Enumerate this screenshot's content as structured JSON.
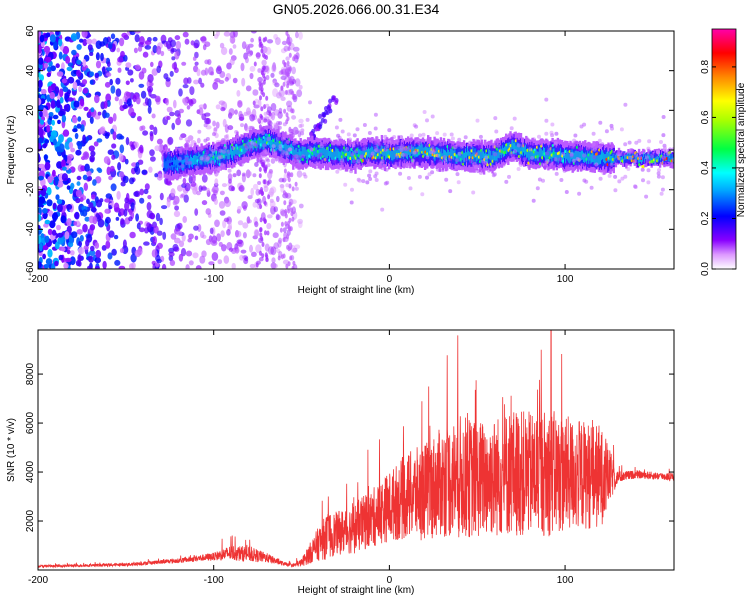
{
  "figure_title": "GN05.2026.066.00.31.E34",
  "chart_data": [
    {
      "type": "heatmap",
      "xlabel": "Height of straight line (km)",
      "ylabel": "Frequency (Hz)",
      "xlim": [
        -200,
        162
      ],
      "ylim": [
        -60,
        60
      ],
      "xticks": [
        -200,
        -100,
        0,
        100
      ],
      "yticks": [
        -60,
        -40,
        -20,
        0,
        20,
        40,
        60
      ],
      "colorbar": {
        "label": "Normalized spectral amplitude",
        "range": [
          0.0,
          0.95
        ],
        "ticks": [
          0.0,
          0.2,
          0.4,
          0.6,
          0.8
        ],
        "colormap": [
          "#ffffff",
          "#8800ff",
          "#0000ff",
          "#00ffff",
          "#00ff00",
          "#ffff00",
          "#ff8800",
          "#ff0000",
          "#ff00aa"
        ]
      },
      "ridge": {
        "x": [
          -125,
          -110,
          -95,
          -80,
          -70,
          -60,
          -50,
          -40,
          -30,
          -20,
          -10,
          0,
          20,
          40,
          60,
          70,
          80,
          90,
          100,
          110,
          120,
          130,
          162
        ],
        "y": [
          -7,
          -5,
          -3,
          2,
          5,
          1,
          -2,
          -1,
          -2,
          -3,
          -1,
          -2,
          -1,
          -3,
          -3,
          2,
          -2,
          -2,
          -3,
          -3,
          -4,
          -4,
          -4
        ],
        "peak_amplitude": [
          0.3,
          0.4,
          0.5,
          0.55,
          0.55,
          0.5,
          0.55,
          0.6,
          0.7,
          0.75,
          0.8,
          0.8,
          0.8,
          0.75,
          0.75,
          0.7,
          0.7,
          0.7,
          0.65,
          0.7,
          0.8,
          0.9,
          0.9
        ]
      },
      "noise_region": {
        "x": [
          -200,
          -60
        ],
        "amplitude": [
          0.05,
          0.35
        ]
      },
      "grid": false
    },
    {
      "type": "line",
      "xlabel": "Height of straight line (km)",
      "ylabel": "SNR (10 * v/v)",
      "xlim": [
        -200,
        162
      ],
      "ylim": [
        0,
        9800
      ],
      "xticks": [
        -200,
        -100,
        0,
        100
      ],
      "yticks": [
        2000,
        4000,
        6000,
        8000
      ],
      "color": "#ee3333",
      "series": [
        {
          "x": [
            -200,
            -150,
            -120,
            -100,
            -90,
            -80,
            -70,
            -60,
            -55,
            -50,
            -40,
            -35,
            -30,
            -20,
            -10,
            0,
            10,
            20,
            30,
            40,
            50,
            60,
            70,
            80,
            90,
            100,
            110,
            120,
            130,
            140,
            150,
            162
          ],
          "mean": [
            150,
            220,
            380,
            550,
            700,
            650,
            500,
            250,
            180,
            300,
            1100,
            1400,
            1500,
            1700,
            2100,
            2600,
            3000,
            3200,
            3600,
            3800,
            3700,
            3800,
            4000,
            3900,
            4000,
            3900,
            3900,
            3800,
            3800,
            3900,
            3850,
            3800
          ],
          "amp": [
            60,
            80,
            120,
            200,
            400,
            400,
            250,
            100,
            80,
            200,
            900,
            1200,
            1100,
            1300,
            1500,
            1800,
            2200,
            2500,
            2800,
            3200,
            3000,
            3100,
            3300,
            3200,
            3300,
            3000,
            2800,
            2700,
            300,
            200,
            200,
            200
          ]
        }
      ],
      "peak": {
        "x": 92,
        "y": 9800
      },
      "grid": false
    }
  ]
}
